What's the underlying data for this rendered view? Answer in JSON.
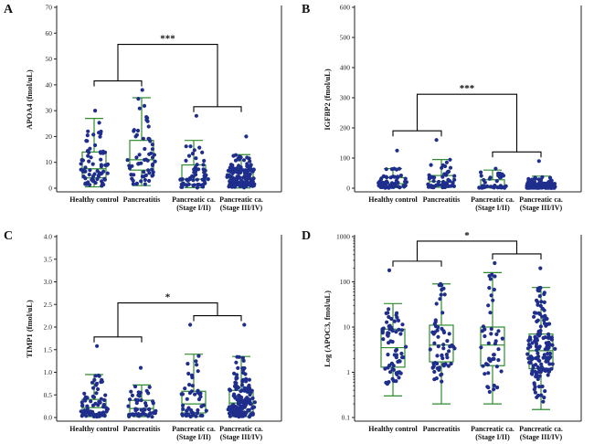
{
  "chart_data": [
    {
      "panel": "A",
      "type": "boxplot",
      "scale": "linear",
      "ylabel": "APOA4 (fmol/uL)",
      "ylim": [
        0,
        70
      ],
      "yticks": [
        "0",
        "10",
        "20",
        "30",
        "40",
        "50",
        "60",
        "70"
      ],
      "tickvals": [
        0,
        10,
        20,
        30,
        40,
        50,
        60,
        70
      ],
      "significance": "***",
      "groups": [
        {
          "label": [
            "Healthy control"
          ],
          "min": 0.5,
          "q1": 4,
          "median": 7.5,
          "q3": 14,
          "max": 27,
          "n": 70,
          "dmin": 0.2,
          "dmax": 30
        },
        {
          "label": [
            "Pancreatitis"
          ],
          "min": 1,
          "q1": 7,
          "median": 11,
          "q3": 18.5,
          "max": 35,
          "n": 60,
          "dmin": 0.5,
          "dmax": 38
        },
        {
          "label": [
            "Pancreatic ca.",
            "(Stage I/II)"
          ],
          "min": 0.2,
          "q1": 1.5,
          "median": 3.5,
          "q3": 9,
          "max": 18.5,
          "n": 60,
          "dmin": 0.1,
          "dmax": 28
        },
        {
          "label": [
            "Pancreatic ca.",
            "(Stage III/IV)"
          ],
          "min": 0.1,
          "q1": 2,
          "median": 4,
          "q3": 7,
          "max": 13,
          "n": 150,
          "dmin": 0.1,
          "dmax": 20
        }
      ]
    },
    {
      "panel": "B",
      "type": "boxplot",
      "scale": "linear",
      "ylabel": "IGFBP2 (fmol/uL)",
      "ylim": [
        0,
        600
      ],
      "yticks": [
        "0",
        "100",
        "200",
        "300",
        "400",
        "500",
        "600"
      ],
      "tickvals": [
        0,
        100,
        200,
        300,
        400,
        500,
        600
      ],
      "significance": "***",
      "groups": [
        {
          "label": [
            "Healthy control"
          ],
          "min": 2,
          "q1": 5,
          "median": 15,
          "q3": 35,
          "max": 65,
          "n": 70,
          "dmin": 1,
          "dmax": 125
        },
        {
          "label": [
            "Pancreatitis"
          ],
          "min": 3,
          "q1": 8,
          "median": 22,
          "q3": 42,
          "max": 95,
          "n": 55,
          "dmin": 2,
          "dmax": 160
        },
        {
          "label": [
            "Pancreatic ca.",
            "(Stage I/II)"
          ],
          "min": 1,
          "q1": 3,
          "median": 8,
          "q3": 28,
          "max": 60,
          "n": 40,
          "dmin": 1,
          "dmax": 65
        },
        {
          "label": [
            "Pancreatic ca.",
            "(Stage III/IV)"
          ],
          "min": 1,
          "q1": 2,
          "median": 5,
          "q3": 15,
          "max": 40,
          "n": 150,
          "dmin": 1,
          "dmax": 90
        }
      ]
    },
    {
      "panel": "C",
      "type": "boxplot",
      "scale": "linear",
      "ylabel": "TIMP1 (fmol/uL)",
      "ylim": [
        0,
        4
      ],
      "yticks": [
        "0.0",
        "0.5",
        "1.0",
        "1.5",
        "2.0",
        "2.5",
        "3.0",
        "3.5",
        "4.0"
      ],
      "tickvals": [
        0,
        0.5,
        1,
        1.5,
        2,
        2.5,
        3,
        3.5,
        4
      ],
      "significance": "*",
      "groups": [
        {
          "label": [
            "Healthy control"
          ],
          "min": 0.02,
          "q1": 0.08,
          "median": 0.22,
          "q3": 0.4,
          "max": 0.95,
          "n": 70,
          "dmin": 0.01,
          "dmax": 1.58
        },
        {
          "label": [
            "Pancreatitis"
          ],
          "min": 0.02,
          "q1": 0.08,
          "median": 0.2,
          "q3": 0.38,
          "max": 0.72,
          "n": 50,
          "dmin": 0.01,
          "dmax": 1.1
        },
        {
          "label": [
            "Pancreatic ca.",
            "(Stage I/II)"
          ],
          "min": 0.02,
          "q1": 0.1,
          "median": 0.3,
          "q3": 0.58,
          "max": 1.4,
          "n": 50,
          "dmin": 0.01,
          "dmax": 2.05
        },
        {
          "label": [
            "Pancreatic ca.",
            "(Stage III/IV)"
          ],
          "min": 0.02,
          "q1": 0.12,
          "median": 0.32,
          "q3": 0.6,
          "max": 1.35,
          "n": 150,
          "dmin": 0.01,
          "dmax": 2.05
        }
      ]
    },
    {
      "panel": "D",
      "type": "boxplot",
      "scale": "log",
      "ylabel": "Log (APOC3, fmol/uL)",
      "ylim": [
        0.1,
        1000
      ],
      "yticks": [
        "0.1",
        "1",
        "10",
        "100",
        "1000"
      ],
      "tickvals": [
        0.1,
        1,
        10,
        100,
        1000
      ],
      "significance": "*",
      "groups": [
        {
          "label": [
            "Healthy control"
          ],
          "min": 0.3,
          "q1": 1.3,
          "median": 3.5,
          "q3": 9,
          "max": 33,
          "n": 70,
          "dmin": 0.3,
          "dmax": 180
        },
        {
          "label": [
            "Pancreatitis"
          ],
          "min": 0.2,
          "q1": 1.7,
          "median": 4,
          "q3": 11,
          "max": 90,
          "n": 60,
          "dmin": 0.15,
          "dmax": 90
        },
        {
          "label": [
            "Pancreatic ca.",
            "(Stage I/II)"
          ],
          "min": 0.2,
          "q1": 1.4,
          "median": 4,
          "q3": 10,
          "max": 160,
          "n": 45,
          "dmin": 0.2,
          "dmax": 260
        },
        {
          "label": [
            "Pancreatic ca.",
            "(Stage III/IV)"
          ],
          "min": 0.15,
          "q1": 1.2,
          "median": 3,
          "q3": 7,
          "max": 75,
          "n": 150,
          "dmin": 0.15,
          "dmax": 200
        }
      ]
    }
  ]
}
